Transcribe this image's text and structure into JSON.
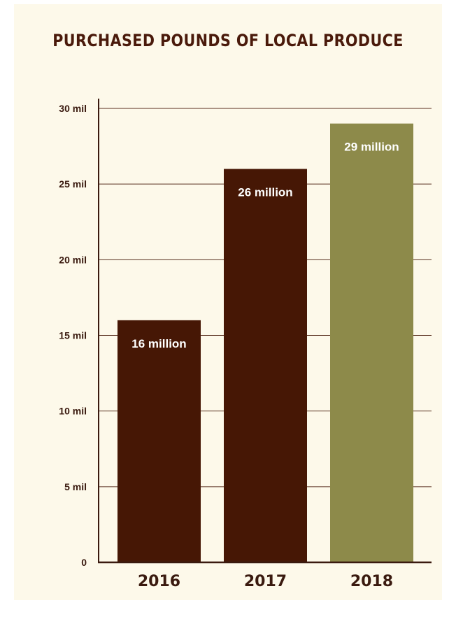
{
  "chart_data": {
    "type": "bar",
    "title": "PURCHASED POUNDS OF LOCAL PRODUCE",
    "categories": [
      "2016",
      "2017",
      "2018"
    ],
    "values": [
      16,
      26,
      29
    ],
    "data_labels": [
      "16 million",
      "26 million",
      "29 million"
    ],
    "yticks": [
      0,
      5,
      10,
      15,
      20,
      25,
      30
    ],
    "ytick_labels": [
      "0",
      "5 mil",
      "10 mil",
      "15 mil",
      "20 mil",
      "25 mil",
      "30 mil"
    ],
    "ylim": [
      0,
      30
    ],
    "grid": true,
    "xlabel": "",
    "ylabel": "",
    "bar_colors": [
      "#461705",
      "#461705",
      "#8d8a4a"
    ]
  },
  "colors": {
    "background": "#fdf9ea",
    "title": "#4a1a0b",
    "axis": "#3a1a0f",
    "gridline": "#5a3020"
  }
}
